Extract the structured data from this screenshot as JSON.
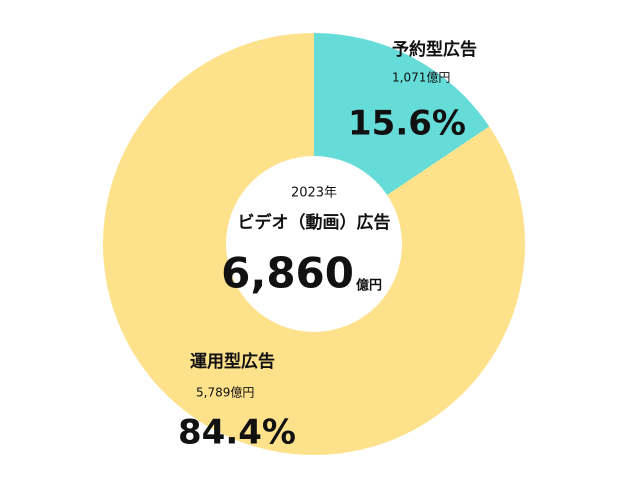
{
  "chart_data": {
    "type": "donut",
    "categories": [
      "予約型広告",
      "運用型広告"
    ],
    "values": [
      15.6,
      84.4
    ],
    "value_labels": [
      "15.6%",
      "84.4%"
    ],
    "amounts": [
      {
        "value": 1071,
        "label": "1,071億円"
      },
      {
        "value": 5789,
        "label": "5,789億円"
      }
    ],
    "colors": [
      "#66dcd8",
      "#fde18b"
    ],
    "center": {
      "year": "2023年",
      "title": "ビデオ（動画）広告",
      "total": {
        "value": 6860,
        "label": "6,860"
      },
      "unit": "億円"
    }
  }
}
